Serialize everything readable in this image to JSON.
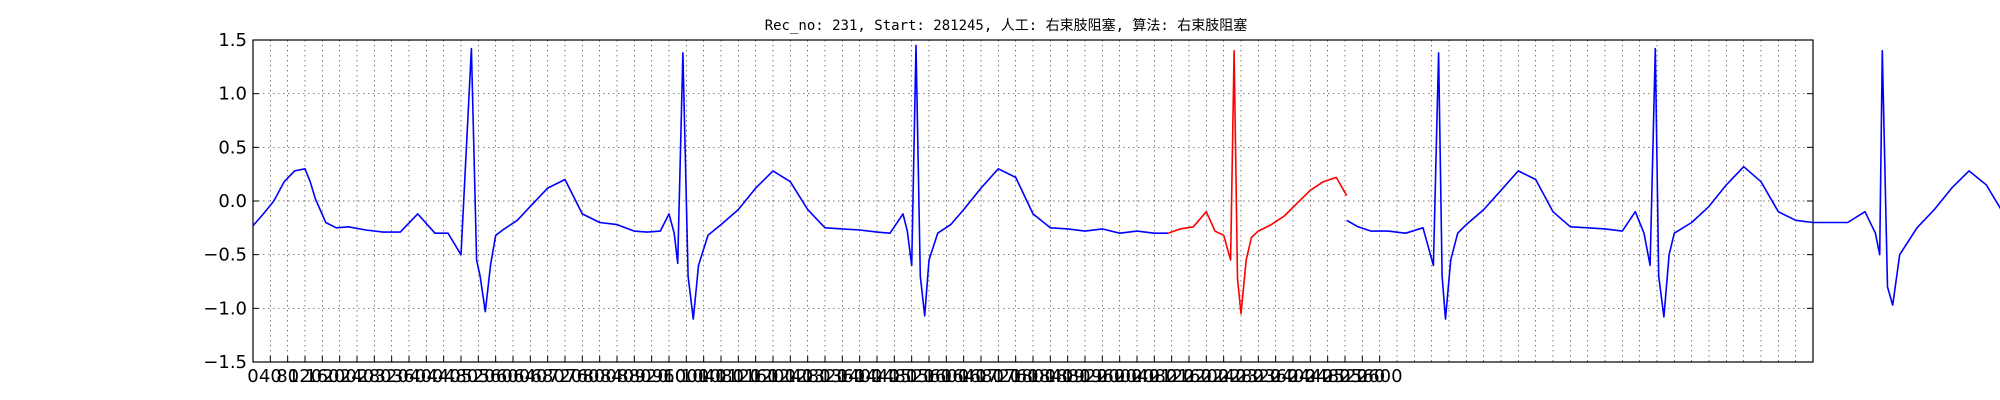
{
  "chart_data": {
    "type": "line",
    "title": "Rec_no: 231, Start: 281245, 人工: 右束肢阻塞, 算法: 右束肢阻塞",
    "xlabel": "",
    "ylabel": "",
    "xlim": [
      0,
      1800
    ],
    "ylim": [
      -1.5,
      1.5
    ],
    "grid": true,
    "x_step": 20,
    "y_ticks": [
      -1.5,
      -1.0,
      -0.5,
      0.0,
      0.5,
      1.0,
      1.5
    ],
    "y_tick_labels": [
      "−1.5",
      "−1.0",
      "−0.5",
      "0.0",
      "0.5",
      "1.0",
      "1.5"
    ],
    "x_tick_labels": [
      "0",
      "40",
      "80",
      "120",
      "160",
      "200",
      "240",
      "280",
      "320",
      "360",
      "400",
      "440",
      "480",
      "520",
      "560",
      "600",
      "640",
      "680",
      "720",
      "760",
      "800",
      "840",
      "880",
      "920",
      "960",
      "1000",
      "1040",
      "1080",
      "1120",
      "1160",
      "1200",
      "1240",
      "1280",
      "1320",
      "1360",
      "1400",
      "1440",
      "1480",
      "1520",
      "1560",
      "1600",
      "1640",
      "1680",
      "1720",
      "1760",
      "1800",
      "1840",
      "1880",
      "1920",
      "1960",
      "2000",
      "2040",
      "2080",
      "2120",
      "2160",
      "2200",
      "2240",
      "2280",
      "2320",
      "2360",
      "2400",
      "2440",
      "2480",
      "2520",
      "2560",
      "2600"
    ],
    "beat_template": {
      "x": [
        0,
        10,
        15,
        20,
        25,
        30,
        35,
        40,
        45,
        50,
        55,
        60,
        65,
        70,
        75,
        80,
        85,
        90,
        95,
        100,
        110,
        120,
        130,
        140,
        150,
        160,
        170,
        180,
        190,
        200,
        210,
        220,
        230,
        240,
        250,
        260,
        270,
        280,
        290,
        300,
        310,
        320,
        330,
        340
      ],
      "y": [
        -0.28,
        -0.28,
        -0.26,
        -0.2,
        -0.12,
        -0.2,
        -0.28,
        -0.3,
        -0.3,
        -0.5,
        1.4,
        -0.5,
        -0.62,
        -0.75,
        -1.02,
        -0.55,
        -0.32,
        -0.27,
        -0.24,
        -0.22,
        -0.18,
        -0.12,
        -0.05,
        0.02,
        0.1,
        0.18,
        0.22,
        0.18,
        0.05,
        -0.12,
        -0.2,
        -0.22,
        -0.21,
        -0.22,
        -0.24,
        -0.25,
        -0.26,
        -0.28,
        -0.28,
        -0.28,
        -0.29,
        -0.28,
        -0.28,
        -0.28
      ]
    },
    "series": [
      {
        "color": "#0000ff",
        "segments": [
          {
            "x": [
              0,
              12,
              24,
              36,
              48,
              60,
              66,
              72,
              84,
              96,
              110,
              130,
              150,
              170,
              190,
              210,
              225,
              240,
              252,
              258,
              262,
              268,
              274,
              280,
              290,
              305,
              320,
              340,
              360,
              380,
              400,
              420,
              440,
              455,
              470,
              480,
              486,
              490,
              496,
              502,
              508,
              514,
              525,
              540,
              560,
              580,
              600,
              620,
              640,
              660,
              680,
              700,
              720,
              735,
              750,
              755,
              760,
              765,
              770,
              775,
              780,
              790,
              805,
              820,
              840,
              860,
              880,
              900,
              920,
              940,
              960,
              980,
              1000,
              1020,
              1040,
              1056
            ],
            "y": [
              -0.23,
              -0.12,
              0.0,
              0.18,
              0.28,
              0.3,
              0.18,
              0.02,
              -0.2,
              -0.25,
              -0.24,
              -0.27,
              -0.29,
              -0.29,
              -0.12,
              -0.3,
              -0.3,
              -0.5,
              1.42,
              -0.55,
              -0.7,
              -1.03,
              -0.6,
              -0.32,
              -0.26,
              -0.18,
              -0.05,
              0.12,
              0.2,
              -0.12,
              -0.2,
              -0.22,
              -0.28,
              -0.29,
              -0.28,
              -0.12,
              -0.3,
              -0.58,
              1.38,
              -0.7,
              -1.1,
              -0.6,
              -0.32,
              -0.22,
              -0.08,
              0.12,
              0.28,
              0.18,
              -0.08,
              -0.25,
              -0.26,
              -0.27,
              -0.29,
              -0.3,
              -0.12,
              -0.28,
              -0.6,
              1.45,
              -0.7,
              -1.07,
              -0.55,
              -0.3,
              -0.22,
              -0.08,
              0.12,
              0.3,
              0.22,
              -0.12,
              -0.25,
              -0.26,
              -0.28,
              -0.26,
              -0.3,
              -0.28,
              -0.3,
              -0.3
            ]
          }
        ]
      },
      {
        "color": "#ff0000",
        "segments": [
          {
            "x": [
              1056,
              1070,
              1085,
              1100,
              1110,
              1120,
              1128,
              1132,
              1136,
              1140,
              1146,
              1152,
              1160,
              1175,
              1190,
              1205,
              1220,
              1235,
              1250,
              1262
            ],
            "y": [
              -0.3,
              -0.26,
              -0.24,
              -0.1,
              -0.28,
              -0.32,
              -0.55,
              1.4,
              -0.72,
              -1.05,
              -0.55,
              -0.34,
              -0.28,
              -0.22,
              -0.14,
              -0.02,
              0.1,
              0.18,
              0.22,
              0.05
            ]
          }
        ]
      },
      {
        "color": "#0000ff",
        "segments": [
          {
            "x": [
              1262,
              1275,
              1290,
              1310,
              1330,
              1350,
              1362,
              1368,
              1372,
              1376,
              1382,
              1390,
              1400,
              1420,
              1440,
              1460,
              1480,
              1500,
              1520,
              1540,
              1560,
              1580,
              1595,
              1605,
              1612,
              1618,
              1622,
              1628,
              1634,
              1640,
              1660,
              1680,
              1700,
              1720,
              1740,
              1760,
              1780,
              1800,
              1820,
              1840,
              1860,
              1872,
              1877,
              1880,
              1886,
              1892,
              1900,
              1920,
              1940,
              1960,
              1980,
              2000,
              2020,
              2040,
              2060,
              2080,
              2100,
              2120,
              2130,
              2140,
              2145,
              2150
            ],
            "y": [
              -0.18,
              -0.24,
              -0.28,
              -0.28,
              -0.3,
              -0.25,
              -0.6,
              1.38,
              -0.7,
              -1.1,
              -0.55,
              -0.3,
              -0.22,
              -0.08,
              0.1,
              0.28,
              0.2,
              -0.1,
              -0.24,
              -0.25,
              -0.26,
              -0.28,
              -0.1,
              -0.3,
              -0.6,
              1.42,
              -0.7,
              -1.08,
              -0.5,
              -0.3,
              -0.2,
              -0.05,
              0.15,
              0.32,
              0.18,
              -0.1,
              -0.18,
              -0.2,
              -0.2,
              -0.2,
              -0.1,
              -0.3,
              -0.5,
              1.4,
              -0.8,
              -0.97,
              -0.5,
              -0.25,
              -0.08,
              0.12,
              0.28,
              0.15,
              -0.12,
              -0.18,
              -0.2,
              -0.22,
              -0.24,
              -0.1,
              -0.3,
              -0.3,
              -0.55,
              1.43
            ]
          },
          {
            "x": [
              2150,
              2155,
              2158
            ],
            "y": [
              1.43,
              -0.55,
              -0.55
            ]
          }
        ]
      }
    ]
  }
}
